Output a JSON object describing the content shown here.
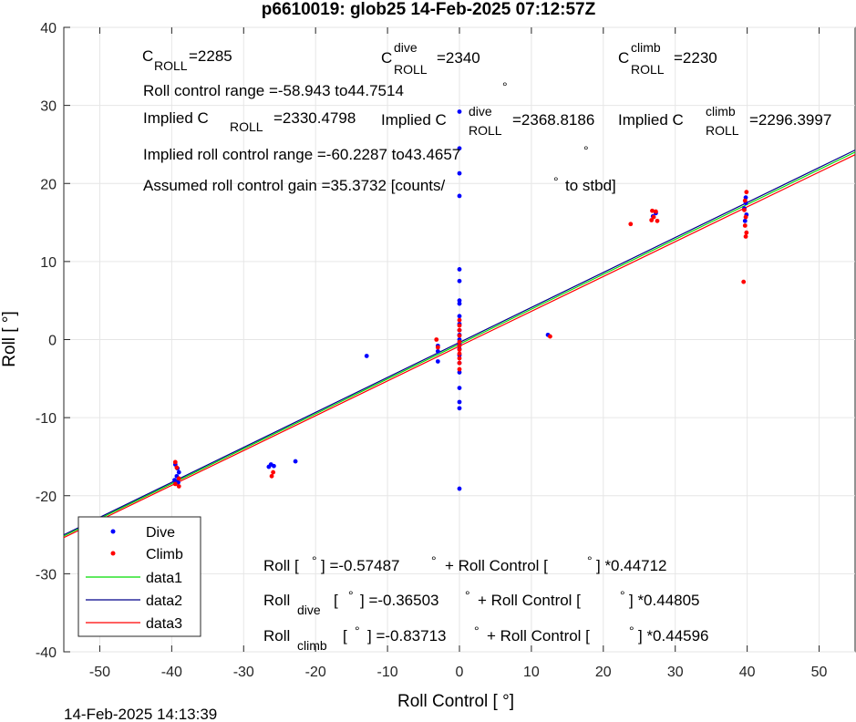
{
  "title": "p6610019: glob25 14-Feb-2025 07:12:57Z",
  "timestamp": "14-Feb-2025 14:13:39",
  "annotations": {
    "c_roll_label": "C",
    "c_roll_sub": "ROLL",
    "c_roll_value": "=2285",
    "c_dive_label": "C",
    "c_dive_sup": "dive",
    "c_dive_sub": "ROLL",
    "c_dive_value": "=2340",
    "c_climb_label": "C",
    "c_climb_sup": "climb",
    "c_climb_sub": "ROLL",
    "c_climb_value": "=2230",
    "roll_range_text": "Roll control range =-58.943 to44.7514",
    "implied_label": "Implied C",
    "implied_roll_sub": "ROLL",
    "implied_roll_value": "=2330.4798",
    "implied_dive_sup": "dive",
    "implied_dive_sub": "ROLL",
    "implied_dive_value": "=2368.8186",
    "implied_climb_sup": "climb",
    "implied_climb_sub": "ROLL",
    "implied_climb_value": "=2296.3997",
    "implied_range_text": "Implied roll control range =-60.2287 to43.4657",
    "gain_text": "Assumed roll control gain =35.3732 [counts/",
    "gain_suffix": "to stbd]",
    "deg": "°"
  },
  "equations": {
    "eq1_left": "Roll [",
    "eq1_mid": "] =-0.57487",
    "eq1_plus": "+ Roll Control [",
    "eq1_end": "] *0.44712",
    "eq2_base": "Roll",
    "eq2_sub": "dive",
    "eq2_mid": "[",
    "eq2_val": "] =-0.36503",
    "eq2_plus": "+ Roll Control [",
    "eq2_end": "] *0.44805",
    "eq3_base": "Roll",
    "eq3_sub": "climb",
    "eq3_mid": "[",
    "eq3_val": "] =-0.83713",
    "eq3_plus": "+ Roll Control [",
    "eq3_end": "] *0.44596",
    "deg": "°"
  },
  "chart_data": {
    "type": "scatter",
    "title": "p6610019: glob25 14-Feb-2025 07:12:57Z",
    "xlabel": "Roll Control [   °]",
    "ylabel": "Roll [  °]",
    "xlim": [
      -55,
      55
    ],
    "ylim": [
      -40,
      40
    ],
    "xticks": [
      -50,
      -40,
      -30,
      -20,
      -10,
      0,
      10,
      20,
      30,
      40,
      50
    ],
    "yticks": [
      -40,
      -30,
      -20,
      -10,
      0,
      10,
      20,
      30,
      40
    ],
    "grid": true,
    "legend_position": "bottom-left",
    "legend": [
      "Dive",
      "Climb",
      "data1",
      "data2",
      "data3"
    ],
    "colors": {
      "dive": "#0000ff",
      "climb": "#ff0000",
      "data1": "#00dd00",
      "data2": "#00008b",
      "data3": "#ff0000"
    },
    "series": [
      {
        "name": "Dive",
        "points": [
          [
            0,
            29.2
          ],
          [
            0,
            24.5
          ],
          [
            0,
            21.3
          ],
          [
            0,
            18.4
          ],
          [
            0,
            9.0
          ],
          [
            0,
            7.5
          ],
          [
            0,
            5.0
          ],
          [
            0,
            4.6
          ],
          [
            0,
            3.0
          ],
          [
            0,
            2.0
          ],
          [
            0,
            1.2
          ],
          [
            0,
            0.6
          ],
          [
            0,
            0.0
          ],
          [
            0,
            -0.6
          ],
          [
            0,
            -1.2
          ],
          [
            0,
            -2.0
          ],
          [
            0,
            -3.0
          ],
          [
            0,
            -4.2
          ],
          [
            0,
            -6.2
          ],
          [
            0,
            -8.0
          ],
          [
            0,
            -8.8
          ],
          [
            0,
            -19.1
          ],
          [
            -12.9,
            -2.1
          ],
          [
            -3,
            -0.8
          ],
          [
            -3,
            -1.5
          ],
          [
            -3,
            -2.8
          ],
          [
            12.3,
            0.6
          ],
          [
            -22.8,
            -15.6
          ],
          [
            -26.2,
            -16.0
          ],
          [
            -25.8,
            -16.2
          ],
          [
            -26.5,
            -16.3
          ],
          [
            -39.5,
            -16.0
          ],
          [
            -39.2,
            -16.5
          ],
          [
            -39.0,
            -17.0
          ],
          [
            -39.3,
            -17.5
          ],
          [
            -39.6,
            -18.0
          ],
          [
            -39.1,
            -18.3
          ],
          [
            27.3,
            16.2
          ],
          [
            26.9,
            15.8
          ],
          [
            39.8,
            18.2
          ],
          [
            39.8,
            17.5
          ],
          [
            39.6,
            16.8
          ],
          [
            39.9,
            16.0
          ],
          [
            39.7,
            15.2
          ]
        ]
      },
      {
        "name": "Climb",
        "points": [
          [
            0,
            2.5
          ],
          [
            0,
            1.8
          ],
          [
            0,
            1.2
          ],
          [
            0,
            0.5
          ],
          [
            0,
            -0.3
          ],
          [
            0,
            -0.8
          ],
          [
            0,
            -1.3
          ],
          [
            0,
            -1.8
          ],
          [
            0,
            -2.4
          ],
          [
            0,
            -3.0
          ],
          [
            0,
            -3.8
          ],
          [
            -3.2,
            0.0
          ],
          [
            -3,
            -1.0
          ],
          [
            12.6,
            0.4
          ],
          [
            -25.9,
            -17.0
          ],
          [
            -26.1,
            -17.5
          ],
          [
            -39.5,
            -15.7
          ],
          [
            -39.3,
            -16.4
          ],
          [
            -39.0,
            -17.8
          ],
          [
            -39.5,
            -18.5
          ],
          [
            -39.0,
            -18.8
          ],
          [
            23.8,
            14.8
          ],
          [
            26.8,
            16.5
          ],
          [
            27.3,
            16.4
          ],
          [
            27.0,
            15.7
          ],
          [
            26.7,
            15.3
          ],
          [
            27.5,
            15.2
          ],
          [
            39.9,
            18.9
          ],
          [
            39.7,
            17.8
          ],
          [
            39.6,
            16.6
          ],
          [
            39.8,
            15.7
          ],
          [
            39.7,
            14.6
          ],
          [
            39.9,
            13.7
          ],
          [
            39.8,
            13.2
          ],
          [
            39.5,
            7.4
          ]
        ]
      },
      {
        "name": "data1",
        "line": true,
        "slope": 0.44712,
        "intercept": -0.57487
      },
      {
        "name": "data2",
        "line": true,
        "slope": 0.44805,
        "intercept": -0.36503
      },
      {
        "name": "data3",
        "line": true,
        "slope": 0.44596,
        "intercept": -0.83713
      }
    ]
  }
}
